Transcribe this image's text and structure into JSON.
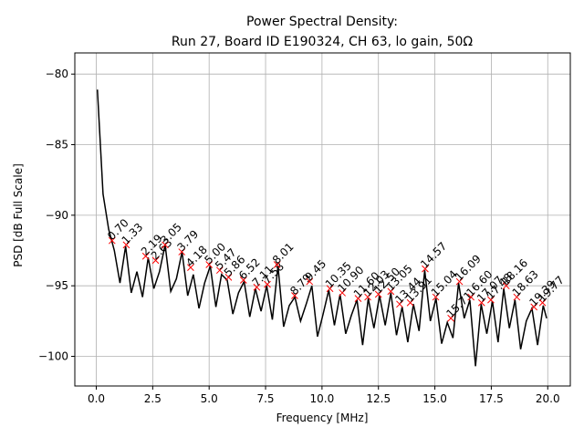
{
  "chart_data": {
    "type": "line",
    "title": [
      "Power Spectral Density:",
      "Run 27, Board ID E190324, CH 63, lo gain, 50Ω"
    ],
    "x_label": "Frequency [MHz]",
    "y_label": "PSD [dB Full Scale]",
    "xlim": [
      -0.95,
      21.0
    ],
    "ylim": [
      -102.1,
      -78.5
    ],
    "xticks": [
      {
        "value": 0,
        "label": "0.0"
      },
      {
        "value": 2.5,
        "label": "2.5"
      },
      {
        "value": 5,
        "label": "5.0"
      },
      {
        "value": 7.5,
        "label": "7.5"
      },
      {
        "value": 10,
        "label": "10.0"
      },
      {
        "value": 12.5,
        "label": "12.5"
      },
      {
        "value": 15,
        "label": "15.0"
      },
      {
        "value": 17.5,
        "label": "17.5"
      },
      {
        "value": 20,
        "label": "20.0"
      }
    ],
    "yticks": [
      {
        "value": -100,
        "label": "−100"
      },
      {
        "value": -95,
        "label": "−95"
      },
      {
        "value": -90,
        "label": "−90"
      },
      {
        "value": -85,
        "label": "−85"
      },
      {
        "value": -80,
        "label": "−80"
      }
    ],
    "grid": true,
    "series": [
      {
        "color": "#000000",
        "x": [
          0.05,
          0.3,
          0.55,
          0.8,
          1.05,
          1.3,
          1.55,
          1.8,
          2.05,
          2.3,
          2.55,
          2.8,
          3.05,
          3.3,
          3.55,
          3.8,
          4.05,
          4.3,
          4.55,
          4.8,
          5.05,
          5.3,
          5.55,
          5.8,
          6.05,
          6.3,
          6.55,
          6.8,
          7.05,
          7.3,
          7.55,
          7.8,
          8.05,
          8.3,
          8.55,
          8.8,
          9.05,
          9.3,
          9.55,
          9.8,
          10.05,
          10.3,
          10.55,
          10.8,
          11.05,
          11.3,
          11.55,
          11.8,
          12.05,
          12.3,
          12.55,
          12.8,
          13.05,
          13.3,
          13.55,
          13.8,
          14.05,
          14.3,
          14.55,
          14.8,
          15.05,
          15.3,
          15.55,
          15.8,
          16.05,
          16.3,
          16.55,
          16.8,
          17.05,
          17.3,
          17.55,
          17.8,
          18.05,
          18.3,
          18.55,
          18.8,
          19.05,
          19.3,
          19.55,
          19.8,
          19.95
        ],
        "values": [
          -81.1,
          -88.5,
          -91.0,
          -92.5,
          -94.8,
          -92.2,
          -95.5,
          -94.0,
          -95.8,
          -93.0,
          -95.2,
          -94.0,
          -92.1,
          -95.4,
          -94.5,
          -92.6,
          -95.7,
          -94.2,
          -96.6,
          -94.8,
          -93.6,
          -96.5,
          -94.2,
          -94.6,
          -97.0,
          -95.5,
          -94.7,
          -97.2,
          -95.2,
          -96.8,
          -95.0,
          -97.4,
          -93.6,
          -97.9,
          -96.4,
          -95.8,
          -97.5,
          -96.3,
          -95.0,
          -98.6,
          -97.0,
          -95.3,
          -97.8,
          -95.6,
          -98.4,
          -97.1,
          -96.0,
          -99.2,
          -95.9,
          -98.0,
          -95.7,
          -97.8,
          -95.5,
          -98.5,
          -96.5,
          -99.0,
          -96.3,
          -98.2,
          -93.9,
          -97.5,
          -95.9,
          -99.1,
          -97.6,
          -98.7,
          -94.8,
          -97.3,
          -96.0,
          -100.7,
          -96.3,
          -98.4,
          -96.1,
          -99.0,
          -95.2,
          -98.0,
          -96.0,
          -99.5,
          -97.5,
          -96.6,
          -99.2,
          -96.4,
          -97.3
        ]
      }
    ],
    "peaks": {
      "color": "#ff0000",
      "x": [
        0.7,
        1.33,
        2.19,
        2.63,
        3.05,
        3.79,
        4.18,
        5.0,
        5.47,
        5.86,
        6.52,
        7.11,
        7.58,
        8.01,
        8.79,
        9.45,
        10.35,
        10.9,
        11.6,
        12.03,
        12.5,
        13.05,
        13.44,
        13.91,
        14.57,
        15.04,
        15.71,
        16.09,
        16.6,
        17.07,
        17.48,
        18.16,
        18.63,
        19.39,
        19.77
      ],
      "x_labels": [
        "0.70",
        "1.33",
        "2.19",
        "2.63",
        "3.05",
        "3.79",
        "4.18",
        "5.00",
        "5.47",
        "5.86",
        "6.52",
        "7.11",
        "7.58",
        "8.01",
        "8.79",
        "9.45",
        "10.35",
        "10.90",
        "11.60",
        "12.03",
        "12.50",
        "13.05",
        "13.44",
        "13.91",
        "14.57",
        "15.04",
        "15.71",
        "16.09",
        "16.60",
        "17.07",
        "17.48",
        "18.16",
        "18.63",
        "19.39",
        "19.77"
      ],
      "values": [
        -91.8,
        -92.1,
        -92.9,
        -93.2,
        -92.1,
        -92.6,
        -93.7,
        -93.5,
        -93.9,
        -94.4,
        -94.6,
        -95.1,
        -94.9,
        -93.5,
        -95.7,
        -94.7,
        -95.2,
        -95.5,
        -95.9,
        -95.8,
        -95.6,
        -95.4,
        -96.3,
        -96.2,
        -93.8,
        -95.8,
        -97.3,
        -94.7,
        -95.8,
        -96.2,
        -96.0,
        -95.0,
        -95.8,
        -96.5,
        -96.2
      ]
    }
  }
}
